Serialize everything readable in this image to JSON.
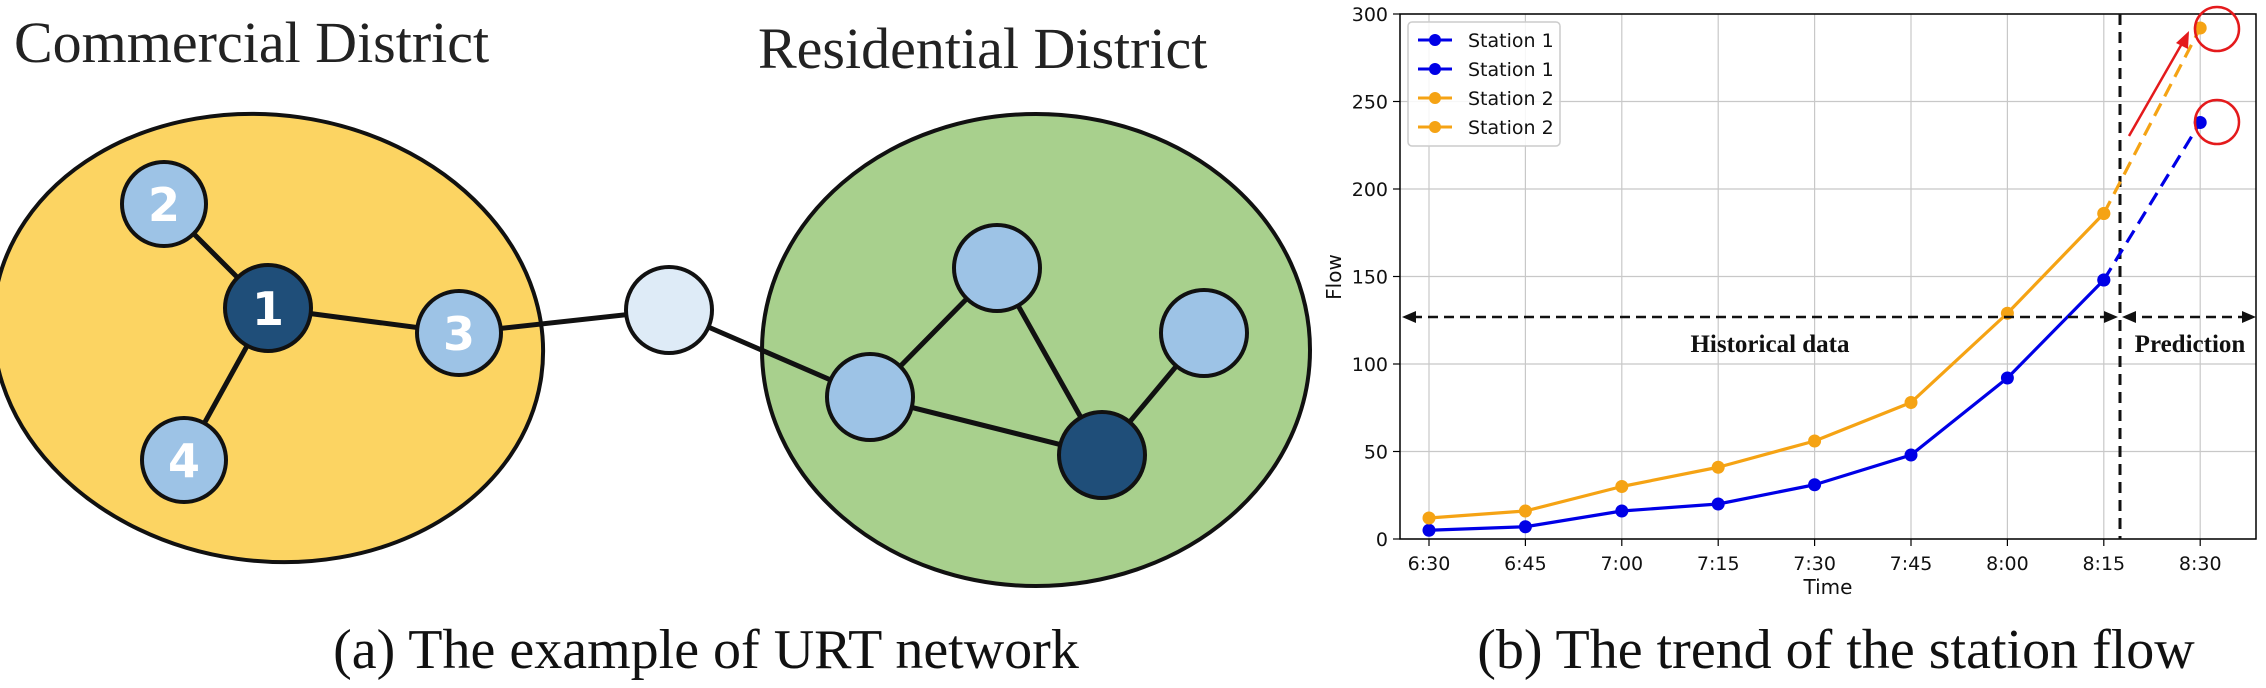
{
  "network": {
    "commercial_label": "Commercial District",
    "residential_label": "Residential District",
    "caption": "(a) The example of URT network",
    "colors": {
      "commercial": "#FCD462",
      "residential": "#A8D08D",
      "node_light": "#9DC3E6",
      "node_dark": "#1F4E79",
      "node_pale": "#DEEBF7"
    },
    "node_labels": [
      "1",
      "2",
      "3",
      "4"
    ]
  },
  "chart_caption": "(b) The trend of the station flow",
  "chart_data": {
    "type": "line",
    "categories": [
      "6:30",
      "6:45",
      "7:00",
      "7:15",
      "7:30",
      "7:45",
      "8:00",
      "8:15",
      "8:30"
    ],
    "xlabel": "Time",
    "ylabel": "Flow",
    "ylim": [
      0,
      300
    ],
    "yticks": [
      "0",
      "50",
      "100",
      "150",
      "200",
      "250",
      "300"
    ],
    "grid": true,
    "legend_position": "top-left",
    "series": [
      {
        "name": "Station 1",
        "color": "#0000E6",
        "style": "solid",
        "values": [
          5,
          7,
          16,
          20,
          31,
          48,
          92,
          148,
          null
        ]
      },
      {
        "name": "Station 1",
        "color": "#0000E6",
        "style": "dashed",
        "values": [
          null,
          null,
          null,
          null,
          null,
          null,
          null,
          148,
          238
        ]
      },
      {
        "name": "Station 2",
        "color": "#F5A314",
        "style": "solid",
        "values": [
          12,
          16,
          30,
          41,
          56,
          78,
          129,
          186,
          null
        ]
      },
      {
        "name": "Station 2",
        "color": "#F5A314",
        "style": "dashed",
        "values": [
          null,
          null,
          null,
          null,
          null,
          null,
          null,
          186,
          292
        ]
      }
    ],
    "annotations": {
      "historical": "Historical data",
      "prediction": "Prediction"
    }
  }
}
